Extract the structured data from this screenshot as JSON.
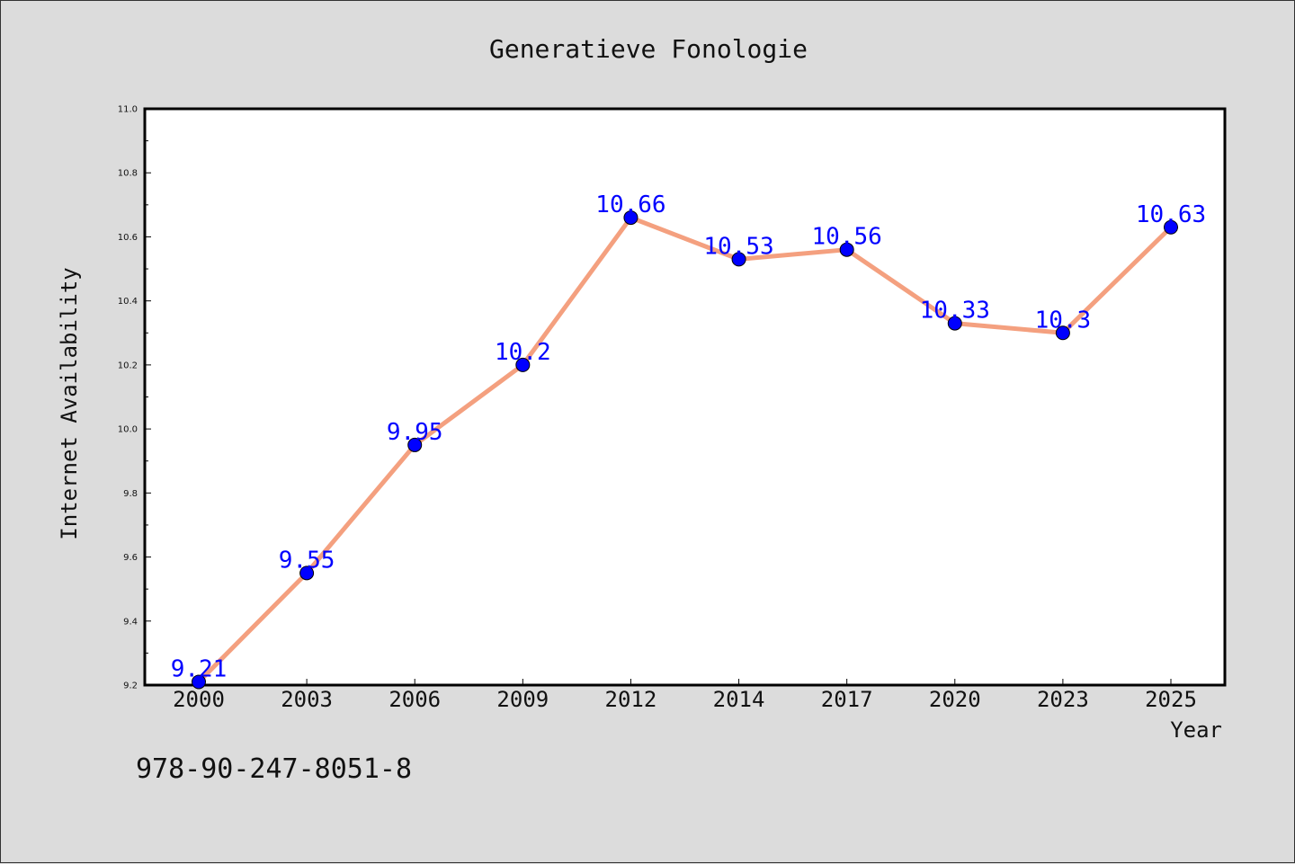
{
  "colors": {
    "background": "#dcdcdc",
    "plot_background": "#ffffff",
    "line": "#f4a07f",
    "marker": "#0000ff",
    "label": "#0000ff",
    "axis": "#000000"
  },
  "footer": {
    "isbn": "978-90-247-8051-8"
  },
  "chart_data": {
    "type": "line",
    "title": "Generatieve Fonologie",
    "xlabel": "Year",
    "ylabel": "Internet Availability",
    "categories": [
      "2000",
      "2003",
      "2006",
      "2009",
      "2012",
      "2014",
      "2017",
      "2020",
      "2023",
      "2025"
    ],
    "series": [
      {
        "values": [
          9.21,
          9.55,
          9.95,
          10.2,
          10.66,
          10.53,
          10.56,
          10.33,
          10.3,
          10.63
        ],
        "data_labels": [
          "9.21",
          "9.55",
          "9.95",
          "10.2",
          "10.66",
          "10.53",
          "10.56",
          "10.33",
          "10.3",
          "10.63"
        ]
      }
    ],
    "ylim": [
      9.2,
      11.0
    ],
    "yticks": [
      "9.2",
      "9.4",
      "9.6",
      "9.8",
      "10.0",
      "10.2",
      "10.4",
      "10.6",
      "10.8",
      "11.0"
    ],
    "grid": false,
    "legend": "none"
  }
}
